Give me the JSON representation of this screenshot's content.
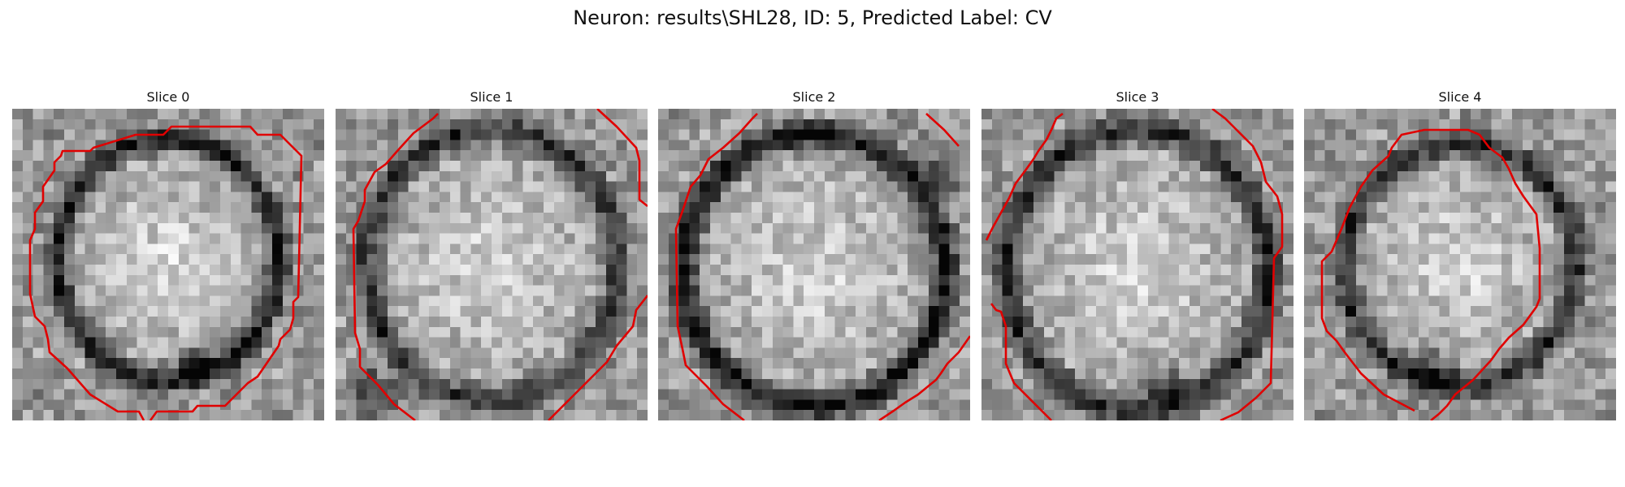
{
  "figure": {
    "title": "Neuron: results\\SHL28, ID: 5, Predicted Label: CV"
  },
  "contour_color": "#e00000",
  "panels": [
    {
      "title": "Slice 0"
    },
    {
      "title": "Slice 1"
    },
    {
      "title": "Slice 2"
    },
    {
      "title": "Slice 3"
    },
    {
      "title": "Slice 4"
    }
  ]
}
